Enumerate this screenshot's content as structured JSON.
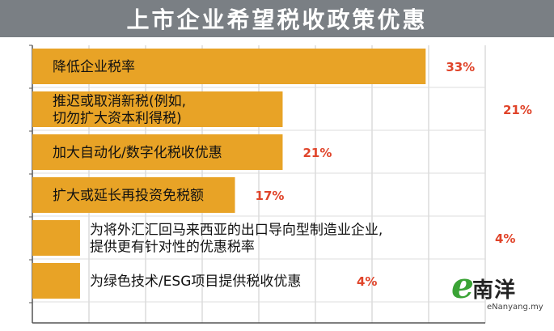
{
  "title": "上市企业希望税收政策优惠",
  "colors": {
    "bar": "#e8a326",
    "title_bg": "#7a7f84",
    "value": "#e0442a",
    "grid": "#c8c8c8"
  },
  "logo": {
    "name": "南洋",
    "url": "eNanyang.my"
  },
  "chart_data": {
    "type": "bar",
    "orientation": "horizontal",
    "title": "上市企业希望税收政策优惠",
    "xlim": [
      0,
      38
    ],
    "grid": true,
    "categories": [
      [
        "降低企业税率"
      ],
      [
        "推迟或取消新税(例如,",
        "切勿扩大资本利得税)"
      ],
      [
        "加大自动化/数字化税收优惠"
      ],
      [
        "扩大或延长再投资免税额"
      ],
      [
        "为将外汇汇回马来西亚的出口导向型制造业企业,",
        "提供更有针对性的优惠税率"
      ],
      [
        "为绿色技术/ESG项目提供税收优惠"
      ]
    ],
    "values": [
      33,
      21,
      21,
      17,
      4,
      4
    ],
    "value_labels": [
      "33%",
      "21%",
      "21%",
      "17%",
      "4%",
      "4%"
    ]
  }
}
